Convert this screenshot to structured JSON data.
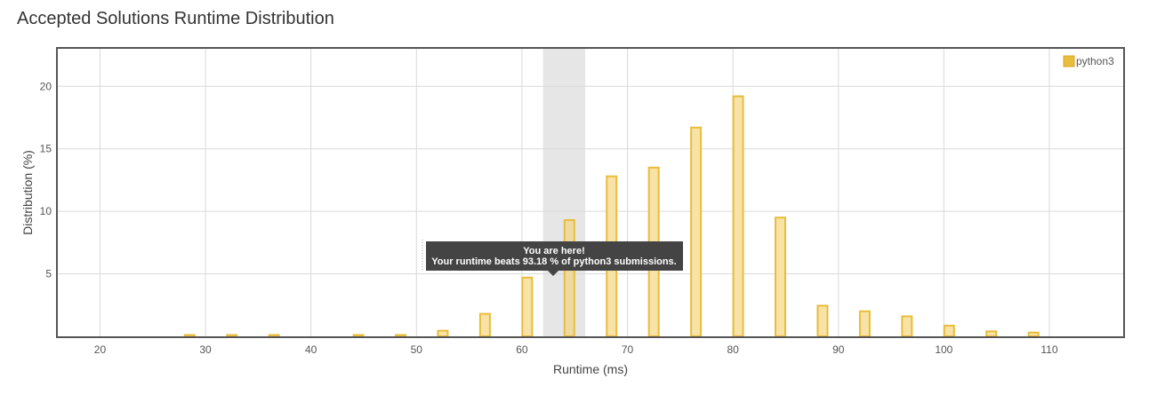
{
  "page": {
    "title": "Accepted Solutions Runtime Distribution"
  },
  "colors": {
    "bar_fill": "#f8e2a6",
    "bar_stroke": "#e8bd3c",
    "highlight_band": "#e6e6e6",
    "tooltip_bg": "#444444",
    "frame": "#555555",
    "grid": "#d9d9d9"
  },
  "tooltip": {
    "line1": "You are here!",
    "line2": "Your runtime beats 93.18 % of python3 submissions."
  },
  "chart_data": {
    "type": "bar",
    "xlabel": "Runtime (ms)",
    "ylabel": "Distribution (%)",
    "xlim": [
      16,
      117
    ],
    "ylim": [
      0,
      23
    ],
    "xticks": [
      20,
      30,
      40,
      50,
      60,
      70,
      80,
      90,
      100,
      110
    ],
    "yticks": [
      5,
      10,
      15,
      20
    ],
    "grid": true,
    "legend_position": "top-right",
    "highlight_range": [
      62,
      66
    ],
    "series": [
      {
        "name": "python3",
        "x": [
          28.5,
          32.5,
          36.5,
          44.5,
          48.5,
          52.5,
          56.5,
          60.5,
          64.5,
          68.5,
          72.5,
          76.5,
          80.5,
          84.5,
          88.5,
          92.5,
          96.5,
          100.5,
          104.5,
          108.5
        ],
        "values": [
          0.05,
          0.05,
          0.05,
          0.05,
          0.1,
          0.45,
          1.8,
          4.7,
          9.3,
          12.8,
          13.5,
          16.7,
          19.2,
          9.5,
          2.45,
          2.0,
          1.6,
          0.85,
          0.4,
          0.3
        ]
      }
    ],
    "highlighted_bar": 64.5
  }
}
